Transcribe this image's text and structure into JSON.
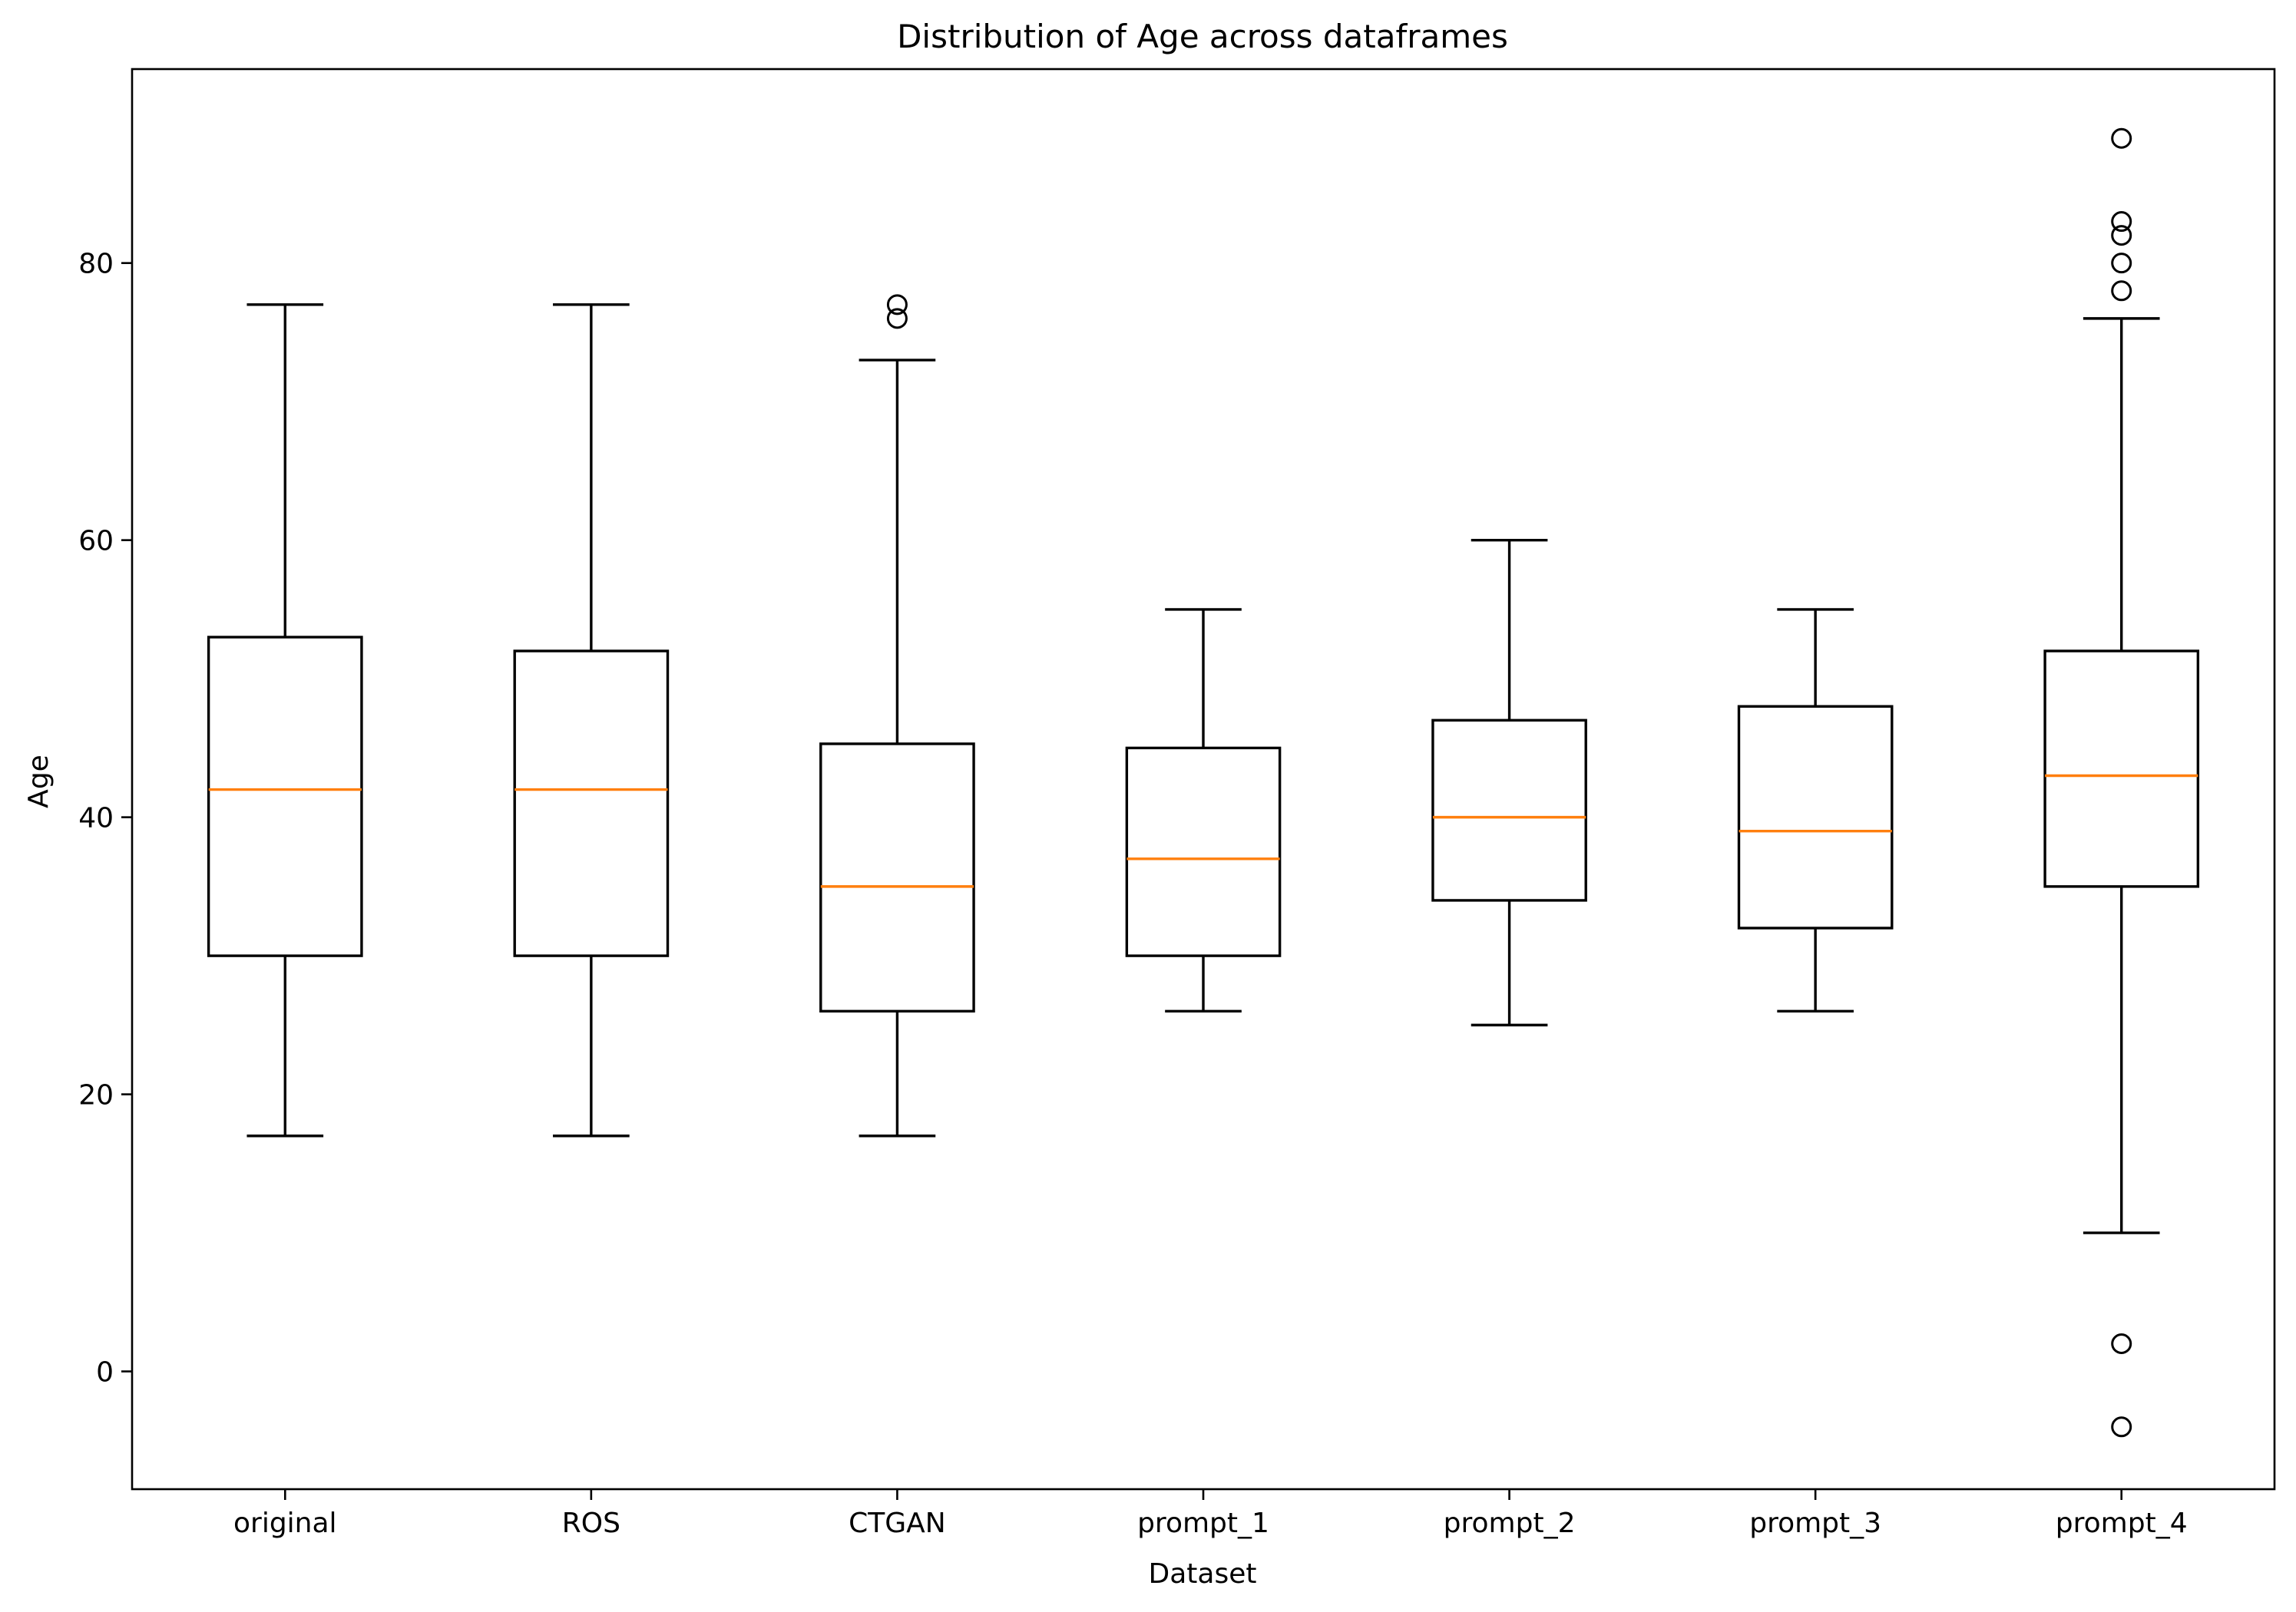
{
  "chart_data": {
    "type": "box",
    "title": "Distribution of Age across dataframes",
    "xlabel": "Dataset",
    "ylabel": "Age",
    "ylim": [
      -8.5,
      94
    ],
    "yticks": [
      0,
      20,
      40,
      60,
      80
    ],
    "grid": false,
    "categories": [
      "original",
      "ROS",
      "CTGAN",
      "prompt_1",
      "prompt_2",
      "prompt_3",
      "prompt_4"
    ],
    "boxes": [
      {
        "label": "original",
        "whisker_low": 17,
        "q1": 30,
        "median": 42,
        "q3": 53,
        "whisker_high": 77,
        "outliers": []
      },
      {
        "label": "ROS",
        "whisker_low": 17,
        "q1": 30,
        "median": 42,
        "q3": 52,
        "whisker_high": 77,
        "outliers": []
      },
      {
        "label": "CTGAN",
        "whisker_low": 17,
        "q1": 26,
        "median": 35,
        "q3": 45.3,
        "whisker_high": 73,
        "outliers": [
          76,
          77
        ]
      },
      {
        "label": "prompt_1",
        "whisker_low": 26,
        "q1": 30,
        "median": 37,
        "q3": 45,
        "whisker_high": 55,
        "outliers": []
      },
      {
        "label": "prompt_2",
        "whisker_low": 25,
        "q1": 34,
        "median": 40,
        "q3": 47,
        "whisker_high": 60,
        "outliers": []
      },
      {
        "label": "prompt_3",
        "whisker_low": 26,
        "q1": 32,
        "median": 39,
        "q3": 48,
        "whisker_high": 55,
        "outliers": []
      },
      {
        "label": "prompt_4",
        "whisker_low": 10,
        "q1": 35,
        "median": 43,
        "q3": 52,
        "whisker_high": 76,
        "outliers": [
          -4,
          2,
          78,
          80,
          82,
          83,
          89
        ]
      }
    ],
    "colors": {
      "box": "#000000",
      "median": "#ff7f0e",
      "background": "#ffffff"
    }
  }
}
